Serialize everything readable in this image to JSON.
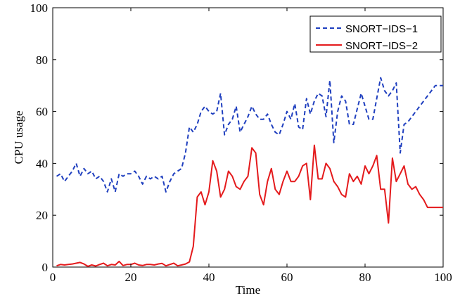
{
  "chart_data": {
    "type": "line",
    "xlabel": "Time",
    "ylabel": "CPU usage",
    "xlim": [
      0,
      100
    ],
    "ylim": [
      0,
      100
    ],
    "xticks": [
      0,
      20,
      40,
      60,
      80,
      100
    ],
    "yticks": [
      0,
      20,
      40,
      60,
      80,
      100
    ],
    "grid": false,
    "legend_position": "top-right",
    "series": [
      {
        "name": "SNORT−IDS−1",
        "color": "#1f3fbf",
        "dash": "dashed",
        "x": [
          1,
          2,
          3,
          4,
          5,
          6,
          7,
          8,
          9,
          10,
          11,
          12,
          13,
          14,
          15,
          16,
          17,
          18,
          19,
          20,
          21,
          22,
          23,
          24,
          25,
          26,
          27,
          28,
          29,
          30,
          31,
          32,
          33,
          34,
          35,
          36,
          37,
          38,
          39,
          40,
          41,
          42,
          43,
          44,
          45,
          46,
          47,
          48,
          49,
          50,
          51,
          52,
          53,
          54,
          55,
          56,
          57,
          58,
          59,
          60,
          61,
          62,
          63,
          64,
          65,
          66,
          67,
          68,
          69,
          70,
          71,
          72,
          73,
          74,
          75,
          76,
          77,
          78,
          79,
          80,
          81,
          82,
          83,
          84,
          85,
          86,
          87,
          88,
          89,
          90,
          91,
          92,
          93,
          94,
          95,
          96,
          97,
          98,
          99,
          100
        ],
        "y": [
          35,
          36,
          33,
          35,
          37,
          40,
          35,
          38,
          36,
          37,
          34,
          35,
          33,
          29,
          34,
          29,
          36,
          35,
          36,
          36,
          37,
          35,
          32,
          35,
          34,
          35,
          34,
          35,
          29,
          33,
          36,
          37,
          38,
          44,
          54,
          52,
          55,
          60,
          62,
          60,
          59,
          60,
          67,
          51,
          55,
          57,
          62,
          52,
          55,
          58,
          62,
          59,
          57,
          57,
          59,
          55,
          52,
          51,
          55,
          60,
          57,
          63,
          54,
          53,
          65,
          59,
          64,
          67,
          66,
          58,
          72,
          48,
          60,
          66,
          64,
          55,
          55,
          61,
          67,
          62,
          57,
          57,
          65,
          73,
          68,
          66,
          68,
          71,
          44,
          55,
          56,
          58,
          60,
          62,
          64,
          66,
          68,
          70,
          70,
          70
        ]
      },
      {
        "name": "SNORT−IDS−2",
        "color": "#e41a1c",
        "dash": "solid",
        "x": [
          1,
          2,
          3,
          4,
          5,
          6,
          7,
          8,
          9,
          10,
          11,
          12,
          13,
          14,
          15,
          16,
          17,
          18,
          19,
          20,
          21,
          22,
          23,
          24,
          25,
          26,
          27,
          28,
          29,
          30,
          31,
          32,
          33,
          34,
          35,
          36,
          37,
          38,
          39,
          40,
          41,
          42,
          43,
          44,
          45,
          46,
          47,
          48,
          49,
          50,
          51,
          52,
          53,
          54,
          55,
          56,
          57,
          58,
          59,
          60,
          61,
          62,
          63,
          64,
          65,
          66,
          67,
          68,
          69,
          70,
          71,
          72,
          73,
          74,
          75,
          76,
          77,
          78,
          79,
          80,
          81,
          82,
          83,
          84,
          85,
          86,
          87,
          88,
          89,
          90,
          91,
          92,
          93,
          94,
          95,
          96,
          97,
          98,
          99,
          100
        ],
        "y": [
          0.5,
          1,
          0.8,
          1,
          1.2,
          1.5,
          1.8,
          1.2,
          0.3,
          0.8,
          0.4,
          1,
          1.5,
          0.5,
          1,
          0.8,
          2.2,
          0.6,
          1,
          1,
          1.5,
          0.8,
          0.6,
          1,
          1,
          0.8,
          1.2,
          1.4,
          0.5,
          1,
          1.5,
          0.5,
          0.8,
          1.2,
          2,
          8,
          27,
          29,
          24,
          29,
          41,
          37,
          27,
          30,
          37,
          35,
          31,
          30,
          33,
          35,
          46,
          44,
          28,
          24,
          33,
          38,
          30,
          28,
          33,
          37,
          33,
          33,
          35,
          39,
          40,
          26,
          47,
          34,
          34,
          40,
          38,
          33,
          31,
          28,
          27,
          36,
          33,
          35,
          32,
          39,
          36,
          39,
          43,
          30,
          30,
          17,
          42,
          33,
          36,
          39,
          32,
          30,
          31,
          28,
          26,
          23,
          23,
          23,
          23,
          23
        ]
      }
    ]
  }
}
